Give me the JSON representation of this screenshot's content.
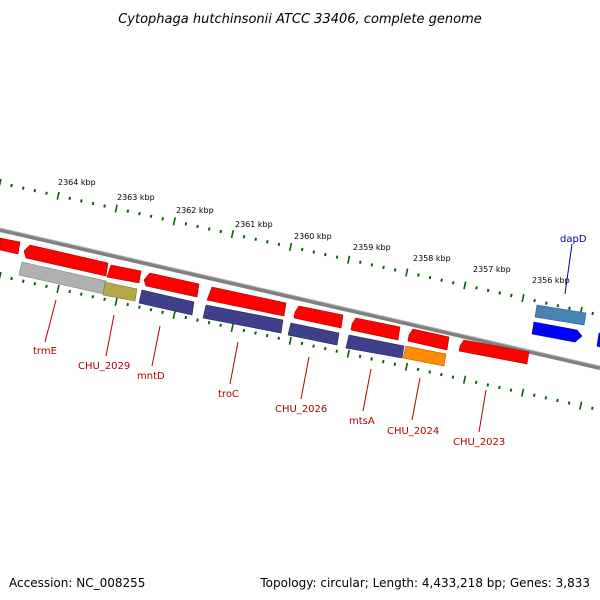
{
  "title": "Cytophaga hutchinsonii ATCC 33406, complete genome",
  "footer": {
    "accession": "Accession: NC_008255",
    "summary": "Topology: circular; Length: 4,433,218 bp; Genes: 3,833"
  },
  "colors": {
    "forward_cds": "#ff0000",
    "reverse_cds": "#0000ff",
    "other_orf": "#40408a",
    "trna_like": "#ff8c00",
    "hypothetical": "#b0b0b0",
    "olive": "#b2a84a",
    "steel": "#4682b4",
    "backbone": "#808080",
    "tick": "#006400",
    "label_forward": "#b00000",
    "label_reverse": "#0000aa"
  },
  "scale_labels": [
    "2364 kbp",
    "2363 kbp",
    "2362 kbp",
    "2361 kbp",
    "2360 kbp",
    "2359 kbp",
    "2358 kbp",
    "2357 kbp",
    "2356 kbp"
  ],
  "gene_labels": [
    {
      "name": "trmE",
      "strand": "forward"
    },
    {
      "name": "CHU_2029",
      "strand": "forward"
    },
    {
      "name": "mntD",
      "strand": "forward"
    },
    {
      "name": "troC",
      "strand": "forward"
    },
    {
      "name": "CHU_2026",
      "strand": "forward"
    },
    {
      "name": "mtsA",
      "strand": "forward"
    },
    {
      "name": "CHU_2024",
      "strand": "forward"
    },
    {
      "name": "CHU_2023",
      "strand": "forward"
    },
    {
      "name": "dapD",
      "strand": "reverse"
    }
  ]
}
